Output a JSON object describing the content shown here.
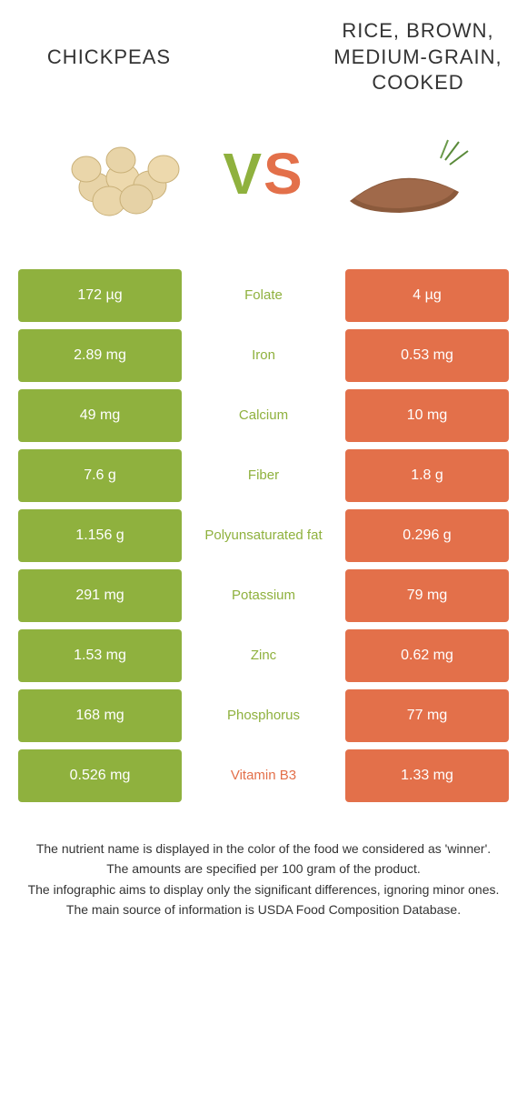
{
  "colors": {
    "left": "#8fb13e",
    "right": "#e3704a",
    "bg": "#ffffff",
    "text": "#333333"
  },
  "foods": {
    "left": {
      "title": "CHICKPEAS"
    },
    "right": {
      "title": "RICE, BROWN, MEDIUM-GRAIN, COOKED"
    }
  },
  "vs": {
    "v": "V",
    "s": "S"
  },
  "rows": [
    {
      "name": "Folate",
      "left": "172 µg",
      "right": "4 µg",
      "winner": "left"
    },
    {
      "name": "Iron",
      "left": "2.89 mg",
      "right": "0.53 mg",
      "winner": "left"
    },
    {
      "name": "Calcium",
      "left": "49 mg",
      "right": "10 mg",
      "winner": "left"
    },
    {
      "name": "Fiber",
      "left": "7.6 g",
      "right": "1.8 g",
      "winner": "left"
    },
    {
      "name": "Polyunsaturated fat",
      "left": "1.156 g",
      "right": "0.296 g",
      "winner": "left"
    },
    {
      "name": "Potassium",
      "left": "291 mg",
      "right": "79 mg",
      "winner": "left"
    },
    {
      "name": "Zinc",
      "left": "1.53 mg",
      "right": "0.62 mg",
      "winner": "left"
    },
    {
      "name": "Phosphorus",
      "left": "168 mg",
      "right": "77 mg",
      "winner": "left"
    },
    {
      "name": "Vitamin B3",
      "left": "0.526 mg",
      "right": "1.33 mg",
      "winner": "right"
    }
  ],
  "footer": {
    "line1": "The nutrient name is displayed in the color of the food we considered as 'winner'.",
    "line2": "The amounts are specified per 100 gram of the product.",
    "line3": "The infographic aims to display only the significant differences, ignoring minor ones.",
    "line4": "The main source of information is USDA Food Composition Database."
  }
}
